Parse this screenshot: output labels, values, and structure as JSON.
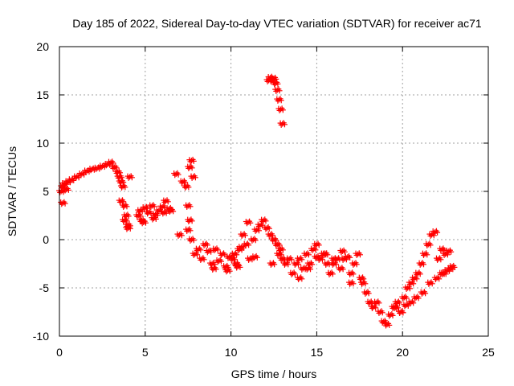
{
  "chart_data": {
    "type": "scatter",
    "title": "Day 185 of 2022, Sidereal Day-to-day VTEC variation (SDTVAR) for receiver ac71",
    "xlabel": "GPS time / hours",
    "ylabel": "SDTVAR / TECUs",
    "xlim": [
      0,
      25
    ],
    "ylim": [
      -10,
      20
    ],
    "xticks": [
      "0",
      "5",
      "10",
      "15",
      "20",
      "25"
    ],
    "yticks": [
      "-10",
      "-5",
      "0",
      "5",
      "10",
      "15",
      "20"
    ],
    "grid": true,
    "marker": "plus",
    "color": "#ff0000",
    "series": [
      {
        "name": "SDTVAR",
        "x": [
          0.1,
          0.2,
          0.3,
          0.5,
          0.7,
          1.0,
          1.3,
          1.6,
          1.9,
          2.2,
          2.5,
          2.8,
          3.0,
          3.2,
          3.4,
          3.5,
          3.6,
          3.7,
          3.8,
          3.9,
          4.0,
          4.1,
          3.6,
          3.8,
          4.0,
          0.2,
          0.4,
          4.6,
          4.7,
          4.8,
          5.0,
          5.2,
          5.4,
          5.6,
          5.8,
          6.0,
          6.2,
          6.4,
          6.5,
          4.9,
          5.5,
          6.1,
          6.8,
          7.0,
          7.2,
          7.4,
          7.5,
          7.6,
          7.7,
          7.8,
          7.6,
          7.5,
          7.7,
          7.9,
          8.1,
          8.3,
          8.5,
          8.7,
          8.9,
          9.1,
          9.3,
          9.5,
          9.7,
          9.9,
          10.1,
          10.3,
          10.5,
          10.7,
          10.9,
          11.1,
          11.3,
          11.5,
          11.7,
          11.9,
          12.1,
          12.3,
          12.5,
          12.7,
          12.9,
          9.0,
          9.8,
          10.2,
          10.4,
          10.6,
          11.0,
          11.4,
          12.4,
          12.2,
          12.3,
          12.4,
          12.5,
          12.6,
          12.7,
          12.8,
          12.9,
          13.0,
          12.8,
          13.0,
          13.2,
          13.4,
          13.6,
          13.8,
          14.0,
          14.2,
          14.4,
          14.6,
          14.8,
          15.0,
          15.2,
          15.4,
          15.6,
          15.8,
          16.0,
          16.2,
          16.4,
          16.6,
          16.8,
          17.0,
          17.2,
          17.4,
          17.6,
          14.0,
          14.5,
          15.0,
          15.5,
          16.0,
          16.5,
          17.0,
          17.7,
          17.9,
          18.1,
          18.3,
          18.5,
          18.7,
          18.9,
          19.1,
          19.3,
          19.5,
          19.7,
          19.9,
          20.1,
          20.3,
          20.5,
          20.7,
          20.9,
          21.1,
          21.3,
          21.5,
          21.7,
          21.9,
          22.1,
          22.3,
          22.5,
          22.7,
          19.6,
          19.9,
          20.2,
          20.5,
          20.8,
          21.2,
          21.6,
          22.0,
          22.4,
          22.8,
          22.9,
          22.6,
          22.3
        ],
        "y": [
          5.0,
          5.5,
          5.8,
          6.0,
          6.2,
          6.5,
          6.8,
          7.1,
          7.3,
          7.4,
          7.6,
          7.8,
          8.0,
          7.5,
          7.0,
          6.5,
          6.0,
          5.5,
          3.5,
          2.5,
          1.5,
          6.5,
          4.0,
          2.0,
          1.2,
          3.8,
          5.2,
          2.5,
          3.0,
          2.0,
          3.3,
          2.8,
          3.5,
          2.6,
          3.0,
          3.4,
          4.0,
          3.2,
          3.0,
          1.8,
          2.2,
          2.8,
          6.8,
          0.5,
          6.0,
          5.5,
          1.0,
          7.5,
          8.2,
          6.5,
          2.0,
          3.5,
          0.0,
          -1.5,
          -1.0,
          -2.0,
          -0.5,
          -1.2,
          -2.5,
          -1.0,
          -2.2,
          -1.5,
          -2.8,
          -1.8,
          -2.0,
          -2.5,
          -1.0,
          0.5,
          -0.5,
          -2.0,
          0.0,
          1.0,
          1.5,
          2.0,
          1.2,
          0.5,
          0.0,
          -0.5,
          -1.0,
          -3.0,
          -3.2,
          -1.5,
          -2.8,
          -0.8,
          1.8,
          -1.8,
          -2.5,
          16.5,
          16.8,
          16.5,
          16.7,
          16.2,
          15.5,
          14.5,
          13.5,
          12.0,
          -1.5,
          -2.0,
          -2.5,
          -2.0,
          -3.5,
          -2.5,
          -2.0,
          -3.0,
          -1.5,
          -2.5,
          -1.0,
          -0.5,
          -2.0,
          -1.5,
          -2.5,
          -3.5,
          -2.5,
          -2.0,
          -3.0,
          -2.0,
          -1.8,
          -3.5,
          -2.5,
          -1.5,
          -4.0,
          -4.0,
          -3.0,
          -1.8,
          -1.5,
          -2.0,
          -1.2,
          -4.5,
          -4.5,
          -5.5,
          -6.5,
          -7.0,
          -6.5,
          -7.5,
          -8.5,
          -8.8,
          -7.8,
          -7.0,
          -6.5,
          -7.5,
          -6.0,
          -5.0,
          -4.5,
          -4.0,
          -3.5,
          -2.5,
          -1.5,
          -0.5,
          0.5,
          0.8,
          -2.0,
          -1.0,
          -1.5,
          -1.2,
          -7.0,
          -7.5,
          -6.8,
          -6.5,
          -6.0,
          -5.5,
          -4.5,
          -4.0,
          -3.5,
          -3.0,
          -2.8,
          -3.2,
          -3.5
        ]
      }
    ]
  }
}
